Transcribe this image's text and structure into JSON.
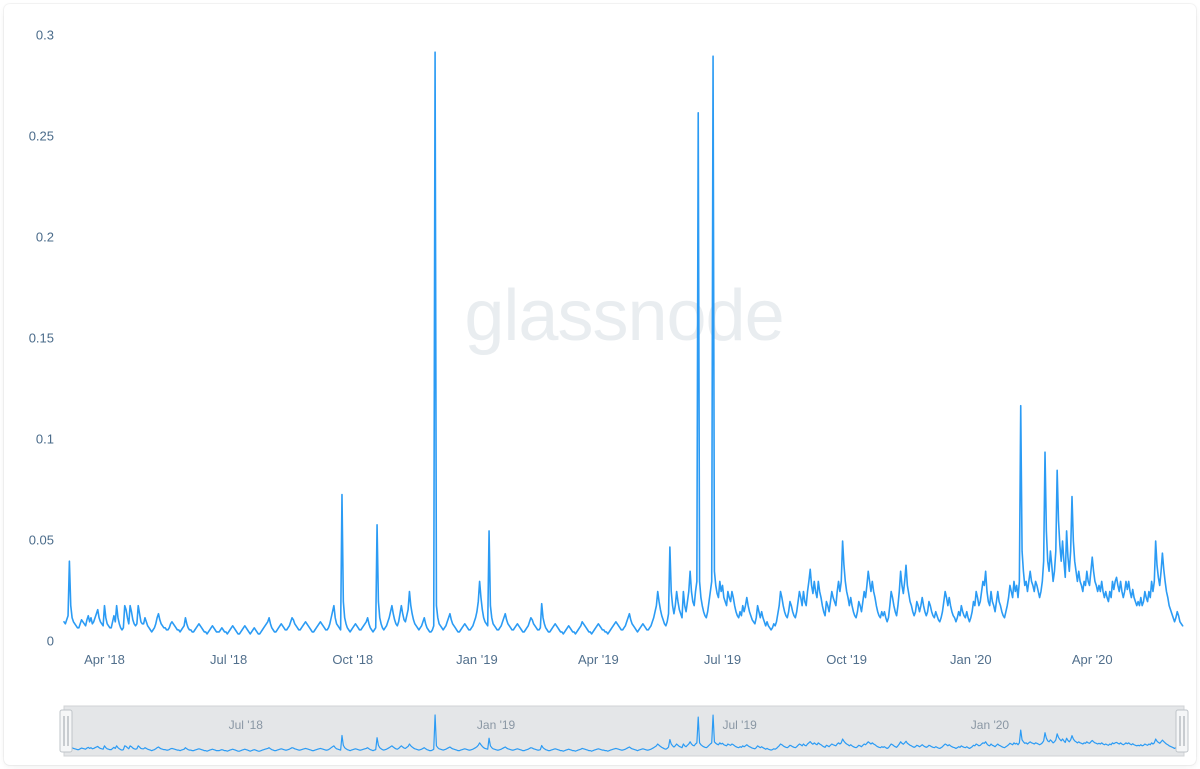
{
  "chart": {
    "type": "line",
    "watermark": "glassnode",
    "line_color": "#2b9bf4",
    "line_width": 1.6,
    "background_color": "#ffffff",
    "axis_label_color": "#4a6b8a",
    "watermark_color": "#e9edf0",
    "watermark_fontsize": 72,
    "ylim": [
      0,
      0.3
    ],
    "yticks": [
      0,
      0.05,
      0.1,
      0.15,
      0.2,
      0.25,
      0.3
    ],
    "ytick_labels": [
      "0",
      "0.05",
      "0.1",
      "0.15",
      "0.2",
      "0.25",
      "0.3"
    ],
    "ytick_fontsize": 13,
    "x_domain": [
      0,
      830
    ],
    "xticks": [
      30,
      122,
      214,
      306,
      396,
      488,
      580,
      672,
      762
    ],
    "xtick_labels": [
      "Apr '18",
      "Jul '18",
      "Oct '18",
      "Jan '19",
      "Apr '19",
      "Jul '19",
      "Oct '19",
      "Jan '20",
      "Apr '20"
    ],
    "xtick_fontsize": 13,
    "series": [
      0.01,
      0.009,
      0.011,
      0.013,
      0.04,
      0.018,
      0.012,
      0.01,
      0.009,
      0.008,
      0.007,
      0.007,
      0.009,
      0.011,
      0.01,
      0.009,
      0.008,
      0.011,
      0.013,
      0.01,
      0.012,
      0.009,
      0.01,
      0.012,
      0.014,
      0.016,
      0.012,
      0.01,
      0.009,
      0.008,
      0.018,
      0.012,
      0.009,
      0.008,
      0.007,
      0.007,
      0.01,
      0.013,
      0.01,
      0.018,
      0.012,
      0.009,
      0.007,
      0.006,
      0.007,
      0.018,
      0.016,
      0.012,
      0.009,
      0.018,
      0.015,
      0.011,
      0.009,
      0.008,
      0.009,
      0.018,
      0.014,
      0.01,
      0.009,
      0.009,
      0.012,
      0.01,
      0.008,
      0.007,
      0.006,
      0.005,
      0.006,
      0.007,
      0.009,
      0.012,
      0.014,
      0.011,
      0.009,
      0.008,
      0.007,
      0.007,
      0.006,
      0.006,
      0.007,
      0.009,
      0.01,
      0.009,
      0.008,
      0.007,
      0.006,
      0.006,
      0.005,
      0.006,
      0.007,
      0.008,
      0.012,
      0.009,
      0.007,
      0.006,
      0.006,
      0.005,
      0.005,
      0.006,
      0.007,
      0.008,
      0.009,
      0.008,
      0.007,
      0.006,
      0.005,
      0.005,
      0.004,
      0.005,
      0.006,
      0.007,
      0.008,
      0.007,
      0.006,
      0.005,
      0.005,
      0.005,
      0.006,
      0.007,
      0.006,
      0.005,
      0.005,
      0.004,
      0.005,
      0.006,
      0.007,
      0.008,
      0.007,
      0.006,
      0.005,
      0.004,
      0.004,
      0.005,
      0.006,
      0.007,
      0.008,
      0.007,
      0.006,
      0.005,
      0.004,
      0.005,
      0.006,
      0.007,
      0.006,
      0.005,
      0.004,
      0.004,
      0.005,
      0.006,
      0.007,
      0.008,
      0.009,
      0.01,
      0.012,
      0.009,
      0.007,
      0.006,
      0.005,
      0.005,
      0.006,
      0.007,
      0.008,
      0.009,
      0.008,
      0.007,
      0.006,
      0.006,
      0.007,
      0.008,
      0.01,
      0.012,
      0.011,
      0.009,
      0.008,
      0.007,
      0.006,
      0.006,
      0.007,
      0.008,
      0.009,
      0.01,
      0.009,
      0.008,
      0.007,
      0.006,
      0.005,
      0.005,
      0.006,
      0.007,
      0.008,
      0.009,
      0.01,
      0.009,
      0.008,
      0.007,
      0.006,
      0.006,
      0.007,
      0.009,
      0.012,
      0.015,
      0.018,
      0.012,
      0.009,
      0.008,
      0.007,
      0.006,
      0.073,
      0.02,
      0.012,
      0.009,
      0.007,
      0.006,
      0.005,
      0.006,
      0.007,
      0.008,
      0.009,
      0.008,
      0.007,
      0.006,
      0.006,
      0.007,
      0.008,
      0.009,
      0.01,
      0.012,
      0.009,
      0.007,
      0.006,
      0.005,
      0.006,
      0.007,
      0.058,
      0.02,
      0.012,
      0.009,
      0.007,
      0.006,
      0.007,
      0.008,
      0.01,
      0.012,
      0.015,
      0.018,
      0.014,
      0.011,
      0.009,
      0.008,
      0.01,
      0.014,
      0.018,
      0.014,
      0.011,
      0.01,
      0.013,
      0.016,
      0.025,
      0.018,
      0.014,
      0.011,
      0.009,
      0.008,
      0.007,
      0.006,
      0.007,
      0.008,
      0.01,
      0.012,
      0.009,
      0.007,
      0.006,
      0.005,
      0.005,
      0.006,
      0.008,
      0.292,
      0.018,
      0.012,
      0.009,
      0.008,
      0.007,
      0.006,
      0.007,
      0.008,
      0.01,
      0.012,
      0.014,
      0.011,
      0.009,
      0.008,
      0.007,
      0.006,
      0.005,
      0.005,
      0.006,
      0.007,
      0.008,
      0.009,
      0.008,
      0.007,
      0.006,
      0.006,
      0.007,
      0.008,
      0.01,
      0.012,
      0.015,
      0.02,
      0.03,
      0.022,
      0.016,
      0.012,
      0.01,
      0.009,
      0.008,
      0.055,
      0.018,
      0.012,
      0.009,
      0.008,
      0.007,
      0.006,
      0.006,
      0.007,
      0.008,
      0.01,
      0.012,
      0.014,
      0.011,
      0.009,
      0.008,
      0.007,
      0.006,
      0.006,
      0.007,
      0.008,
      0.009,
      0.008,
      0.007,
      0.006,
      0.005,
      0.005,
      0.006,
      0.007,
      0.008,
      0.01,
      0.012,
      0.011,
      0.009,
      0.008,
      0.007,
      0.006,
      0.006,
      0.007,
      0.019,
      0.012,
      0.009,
      0.007,
      0.006,
      0.005,
      0.005,
      0.006,
      0.007,
      0.008,
      0.009,
      0.008,
      0.007,
      0.006,
      0.005,
      0.005,
      0.004,
      0.005,
      0.006,
      0.007,
      0.008,
      0.007,
      0.006,
      0.005,
      0.005,
      0.004,
      0.005,
      0.006,
      0.007,
      0.008,
      0.01,
      0.009,
      0.008,
      0.007,
      0.006,
      0.005,
      0.005,
      0.004,
      0.005,
      0.006,
      0.007,
      0.008,
      0.009,
      0.008,
      0.007,
      0.006,
      0.006,
      0.005,
      0.005,
      0.004,
      0.005,
      0.006,
      0.007,
      0.008,
      0.009,
      0.01,
      0.009,
      0.008,
      0.007,
      0.006,
      0.006,
      0.007,
      0.008,
      0.01,
      0.012,
      0.014,
      0.011,
      0.009,
      0.008,
      0.007,
      0.006,
      0.005,
      0.006,
      0.007,
      0.008,
      0.009,
      0.008,
      0.007,
      0.006,
      0.006,
      0.007,
      0.008,
      0.01,
      0.012,
      0.015,
      0.018,
      0.025,
      0.02,
      0.016,
      0.013,
      0.011,
      0.009,
      0.008,
      0.01,
      0.014,
      0.047,
      0.025,
      0.018,
      0.014,
      0.018,
      0.025,
      0.02,
      0.016,
      0.014,
      0.012,
      0.025,
      0.018,
      0.015,
      0.02,
      0.025,
      0.035,
      0.025,
      0.02,
      0.018,
      0.025,
      0.03,
      0.262,
      0.03,
      0.022,
      0.018,
      0.015,
      0.013,
      0.012,
      0.015,
      0.02,
      0.025,
      0.03,
      0.29,
      0.035,
      0.028,
      0.024,
      0.022,
      0.03,
      0.025,
      0.028,
      0.022,
      0.02,
      0.018,
      0.025,
      0.022,
      0.02,
      0.025,
      0.022,
      0.018,
      0.015,
      0.013,
      0.012,
      0.015,
      0.013,
      0.018,
      0.015,
      0.018,
      0.022,
      0.018,
      0.015,
      0.013,
      0.011,
      0.01,
      0.009,
      0.012,
      0.018,
      0.015,
      0.012,
      0.015,
      0.012,
      0.01,
      0.008,
      0.01,
      0.008,
      0.007,
      0.006,
      0.007,
      0.009,
      0.008,
      0.01,
      0.014,
      0.018,
      0.025,
      0.022,
      0.018,
      0.015,
      0.013,
      0.012,
      0.015,
      0.02,
      0.018,
      0.015,
      0.013,
      0.012,
      0.015,
      0.02,
      0.025,
      0.022,
      0.018,
      0.025,
      0.02,
      0.018,
      0.025,
      0.03,
      0.036,
      0.028,
      0.024,
      0.03,
      0.025,
      0.022,
      0.03,
      0.025,
      0.022,
      0.018,
      0.015,
      0.013,
      0.02,
      0.018,
      0.015,
      0.02,
      0.025,
      0.022,
      0.02,
      0.018,
      0.025,
      0.03,
      0.025,
      0.03,
      0.05,
      0.038,
      0.03,
      0.025,
      0.022,
      0.018,
      0.022,
      0.018,
      0.015,
      0.013,
      0.012,
      0.015,
      0.02,
      0.018,
      0.015,
      0.02,
      0.025,
      0.022,
      0.028,
      0.035,
      0.03,
      0.025,
      0.03,
      0.025,
      0.022,
      0.018,
      0.015,
      0.013,
      0.012,
      0.015,
      0.013,
      0.015,
      0.012,
      0.01,
      0.012,
      0.018,
      0.025,
      0.022,
      0.018,
      0.015,
      0.013,
      0.018,
      0.025,
      0.035,
      0.028,
      0.024,
      0.03,
      0.038,
      0.028,
      0.024,
      0.02,
      0.018,
      0.015,
      0.013,
      0.015,
      0.02,
      0.018,
      0.015,
      0.018,
      0.022,
      0.018,
      0.015,
      0.013,
      0.015,
      0.02,
      0.018,
      0.015,
      0.013,
      0.012,
      0.015,
      0.013,
      0.011,
      0.01,
      0.012,
      0.015,
      0.02,
      0.025,
      0.022,
      0.018,
      0.022,
      0.018,
      0.015,
      0.013,
      0.012,
      0.01,
      0.012,
      0.015,
      0.013,
      0.018,
      0.015,
      0.013,
      0.012,
      0.015,
      0.012,
      0.01,
      0.012,
      0.015,
      0.02,
      0.018,
      0.025,
      0.022,
      0.018,
      0.02,
      0.025,
      0.03,
      0.028,
      0.035,
      0.025,
      0.02,
      0.018,
      0.025,
      0.02,
      0.018,
      0.015,
      0.02,
      0.025,
      0.02,
      0.018,
      0.015,
      0.013,
      0.012,
      0.015,
      0.018,
      0.022,
      0.028,
      0.025,
      0.022,
      0.03,
      0.025,
      0.028,
      0.022,
      0.03,
      0.117,
      0.045,
      0.035,
      0.028,
      0.03,
      0.025,
      0.03,
      0.035,
      0.03,
      0.028,
      0.025,
      0.03,
      0.028,
      0.025,
      0.022,
      0.025,
      0.03,
      0.04,
      0.094,
      0.055,
      0.04,
      0.035,
      0.045,
      0.038,
      0.03,
      0.035,
      0.045,
      0.085,
      0.06,
      0.048,
      0.04,
      0.05,
      0.04,
      0.032,
      0.055,
      0.042,
      0.035,
      0.045,
      0.072,
      0.05,
      0.04,
      0.035,
      0.03,
      0.035,
      0.03,
      0.028,
      0.025,
      0.03,
      0.028,
      0.035,
      0.03,
      0.028,
      0.035,
      0.042,
      0.035,
      0.03,
      0.028,
      0.025,
      0.028,
      0.025,
      0.03,
      0.025,
      0.022,
      0.025,
      0.022,
      0.02,
      0.025,
      0.022,
      0.03,
      0.026,
      0.03,
      0.032,
      0.028,
      0.025,
      0.03,
      0.025,
      0.022,
      0.025,
      0.03,
      0.026,
      0.03,
      0.025,
      0.022,
      0.026,
      0.022,
      0.02,
      0.018,
      0.02,
      0.018,
      0.022,
      0.018,
      0.02,
      0.025,
      0.022,
      0.02,
      0.025,
      0.022,
      0.03,
      0.025,
      0.03,
      0.05,
      0.038,
      0.032,
      0.028,
      0.035,
      0.044,
      0.036,
      0.03,
      0.025,
      0.022,
      0.018,
      0.016,
      0.014,
      0.012,
      0.01,
      0.012,
      0.015,
      0.013,
      0.01,
      0.009,
      0.008
    ]
  },
  "brush": {
    "background_color": "#e4e6e8",
    "line_color": "#2b9bf4",
    "line_width": 1.2,
    "handle_fill": "#f5f6f7",
    "handle_stroke": "#bfc4c9",
    "ticks": [
      122,
      306,
      488,
      672
    ],
    "tick_labels": [
      "Jul '18",
      "Jan '19",
      "Jul '19",
      "Jan '20"
    ],
    "tick_fontsize": 12,
    "tick_color": "#8a97a4"
  }
}
